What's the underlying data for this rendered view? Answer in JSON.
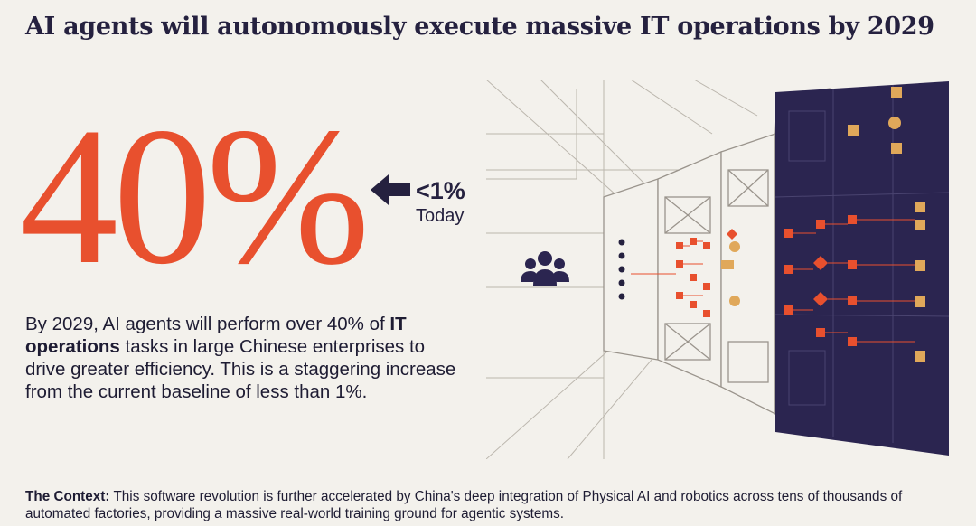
{
  "title": "AI agents will autonomously execute massive IT operations by 2029",
  "headline_stat": "40%",
  "comparison": {
    "value": "<1%",
    "label": "Today",
    "icon": "arrow-left-icon"
  },
  "description": {
    "before": "By 2029, AI agents will perform over 40% of ",
    "bold": "IT operations",
    "after": " tasks in large Chinese enterprises to drive greater efficiency. This is a staggering increase from the current baseline of less than 1%."
  },
  "context": {
    "label": "The Context:",
    "text": " This software revolution is further accelerated by China's deep integration of Physical AI and robotics across tens of thousands of automated factories, providing a massive real-world training ground for agentic systems."
  },
  "illustration": {
    "icons": [
      "users-icon",
      "flowchart-panel"
    ]
  },
  "colors": {
    "accent": "#e8502e",
    "navy": "#2b2550",
    "tan": "#e0a85a",
    "background": "#f3f1ec"
  }
}
